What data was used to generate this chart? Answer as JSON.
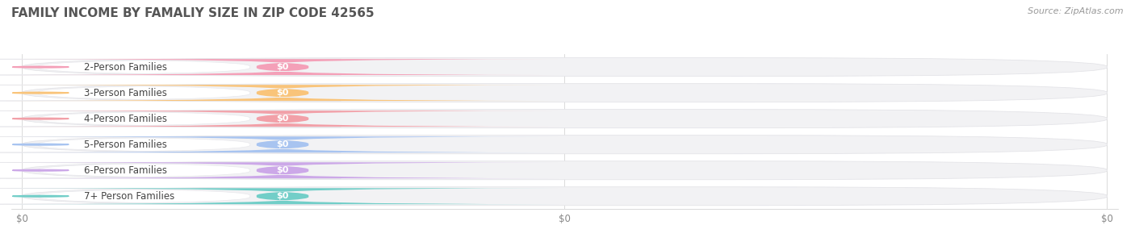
{
  "title": "FAMILY INCOME BY FAMALIY SIZE IN ZIP CODE 42565",
  "source": "Source: ZipAtlas.com",
  "categories": [
    "2-Person Families",
    "3-Person Families",
    "4-Person Families",
    "5-Person Families",
    "6-Person Families",
    "7+ Person Families"
  ],
  "values": [
    0,
    0,
    0,
    0,
    0,
    0
  ],
  "bar_colors": [
    "#f4a0b8",
    "#f9c47a",
    "#f2a0a8",
    "#a8c4f0",
    "#cca8e8",
    "#72cec8"
  ],
  "background_color": "#ffffff",
  "bar_bg_color": "#f2f2f4",
  "bar_bg_edge": "#e4e4e8",
  "pill_bg": "#ffffff",
  "pill_edge": "#e8e8ec",
  "xlim_max": 1.0,
  "xticks": [
    0.0,
    0.5,
    1.0
  ],
  "xtick_labels": [
    "$0",
    "$0",
    "$0"
  ],
  "title_fontsize": 11,
  "label_fontsize": 8.5,
  "value_fontsize": 8,
  "source_fontsize": 8
}
